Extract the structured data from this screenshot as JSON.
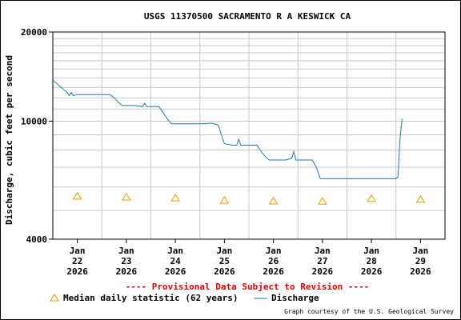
{
  "chart_data": {
    "type": "line",
    "title": "USGS 11370500 SACRAMENTO R A KESWICK CA",
    "ylabel": "Discharge, cubic feet per second",
    "xlabel": "",
    "y_scale": "log",
    "ylim": [
      4000,
      20000
    ],
    "y_ticks": [
      {
        "value": 4000,
        "label": "4000"
      },
      {
        "value": 10000,
        "label": "10000"
      },
      {
        "value": 20000,
        "label": "20000"
      }
    ],
    "x_range": [
      "2026-01-21T12:00",
      "2026-01-29T12:00"
    ],
    "x_ticks": [
      {
        "value": "2026-01-22T00:00",
        "label_month": "Jan",
        "label_day": "22",
        "label_year": "2026"
      },
      {
        "value": "2026-01-23T00:00",
        "label_month": "Jan",
        "label_day": "23",
        "label_year": "2026"
      },
      {
        "value": "2026-01-24T00:00",
        "label_month": "Jan",
        "label_day": "24",
        "label_year": "2026"
      },
      {
        "value": "2026-01-25T00:00",
        "label_month": "Jan",
        "label_day": "25",
        "label_year": "2026"
      },
      {
        "value": "2026-01-26T00:00",
        "label_month": "Jan",
        "label_day": "26",
        "label_year": "2026"
      },
      {
        "value": "2026-01-27T00:00",
        "label_month": "Jan",
        "label_day": "27",
        "label_year": "2026"
      },
      {
        "value": "2026-01-28T00:00",
        "label_month": "Jan",
        "label_day": "28",
        "label_year": "2026"
      },
      {
        "value": "2026-01-29T00:00",
        "label_month": "Jan",
        "label_day": "29",
        "label_year": "2026"
      }
    ],
    "grid": true,
    "legend_position": "bottom",
    "series": [
      {
        "name": "Discharge",
        "color": "#1f77b4",
        "style": "line",
        "points": [
          {
            "x": "2026-01-21T12:00",
            "y": 13700
          },
          {
            "x": "2026-01-21T14:00",
            "y": 13400
          },
          {
            "x": "2026-01-21T16:00",
            "y": 13000
          },
          {
            "x": "2026-01-21T18:00",
            "y": 12700
          },
          {
            "x": "2026-01-21T19:00",
            "y": 12500
          },
          {
            "x": "2026-01-21T20:00",
            "y": 12200
          },
          {
            "x": "2026-01-21T21:00",
            "y": 12500
          },
          {
            "x": "2026-01-21T22:00",
            "y": 12200
          },
          {
            "x": "2026-01-22T00:00",
            "y": 12300
          },
          {
            "x": "2026-01-22T08:00",
            "y": 12300
          },
          {
            "x": "2026-01-22T16:00",
            "y": 12300
          },
          {
            "x": "2026-01-22T18:00",
            "y": 12000
          },
          {
            "x": "2026-01-22T20:00",
            "y": 11600
          },
          {
            "x": "2026-01-22T22:00",
            "y": 11300
          },
          {
            "x": "2026-01-23T00:00",
            "y": 11300
          },
          {
            "x": "2026-01-23T04:00",
            "y": 11300
          },
          {
            "x": "2026-01-23T08:00",
            "y": 11200
          },
          {
            "x": "2026-01-23T09:00",
            "y": 11500
          },
          {
            "x": "2026-01-23T10:00",
            "y": 11200
          },
          {
            "x": "2026-01-23T16:00",
            "y": 11200
          },
          {
            "x": "2026-01-23T18:00",
            "y": 10700
          },
          {
            "x": "2026-01-23T20:00",
            "y": 10200
          },
          {
            "x": "2026-01-23T22:00",
            "y": 9800
          },
          {
            "x": "2026-01-24T00:00",
            "y": 9800
          },
          {
            "x": "2026-01-24T12:00",
            "y": 9800
          },
          {
            "x": "2026-01-24T18:00",
            "y": 9850
          },
          {
            "x": "2026-01-24T21:00",
            "y": 9700
          },
          {
            "x": "2026-01-24T23:00",
            "y": 8800
          },
          {
            "x": "2026-01-25T00:00",
            "y": 8400
          },
          {
            "x": "2026-01-25T04:00",
            "y": 8300
          },
          {
            "x": "2026-01-25T06:00",
            "y": 8300
          },
          {
            "x": "2026-01-25T07:00",
            "y": 8700
          },
          {
            "x": "2026-01-25T08:00",
            "y": 8300
          },
          {
            "x": "2026-01-25T16:00",
            "y": 8300
          },
          {
            "x": "2026-01-25T18:00",
            "y": 7900
          },
          {
            "x": "2026-01-25T20:00",
            "y": 7600
          },
          {
            "x": "2026-01-25T22:00",
            "y": 7400
          },
          {
            "x": "2026-01-26T06:00",
            "y": 7400
          },
          {
            "x": "2026-01-26T09:00",
            "y": 7500
          },
          {
            "x": "2026-01-26T10:00",
            "y": 7900
          },
          {
            "x": "2026-01-26T11:00",
            "y": 7400
          },
          {
            "x": "2026-01-26T19:00",
            "y": 7400
          },
          {
            "x": "2026-01-26T21:00",
            "y": 7000
          },
          {
            "x": "2026-01-26T23:00",
            "y": 6400
          },
          {
            "x": "2026-01-27T00:00",
            "y": 6400
          },
          {
            "x": "2026-01-27T12:00",
            "y": 6400
          },
          {
            "x": "2026-01-28T00:00",
            "y": 6400
          },
          {
            "x": "2026-01-28T12:00",
            "y": 6400
          },
          {
            "x": "2026-01-28T13:00",
            "y": 6500
          },
          {
            "x": "2026-01-28T14:00",
            "y": 8800
          },
          {
            "x": "2026-01-28T15:00",
            "y": 10200
          }
        ]
      },
      {
        "name": "Median daily statistic (62 years)",
        "color": "#e69a00",
        "style": "triangle-marker",
        "points": [
          {
            "x": "2026-01-22T00:00",
            "y": 5600
          },
          {
            "x": "2026-01-23T00:00",
            "y": 5560
          },
          {
            "x": "2026-01-24T00:00",
            "y": 5520
          },
          {
            "x": "2026-01-25T00:00",
            "y": 5420
          },
          {
            "x": "2026-01-26T00:00",
            "y": 5390
          },
          {
            "x": "2026-01-27T00:00",
            "y": 5380
          },
          {
            "x": "2026-01-28T00:00",
            "y": 5500
          },
          {
            "x": "2026-01-29T00:00",
            "y": 5460
          }
        ]
      }
    ]
  },
  "notes": {
    "provisional": "---- Provisional Data Subject to Revision ----",
    "credit": "Graph courtesy of the U.S. Geological Survey"
  },
  "legend": {
    "median_label": "Median daily statistic (62 years)",
    "discharge_label": "Discharge"
  },
  "colors": {
    "grid": "#c8c8c8",
    "axis": "#000000",
    "provisional": "#e60000"
  }
}
